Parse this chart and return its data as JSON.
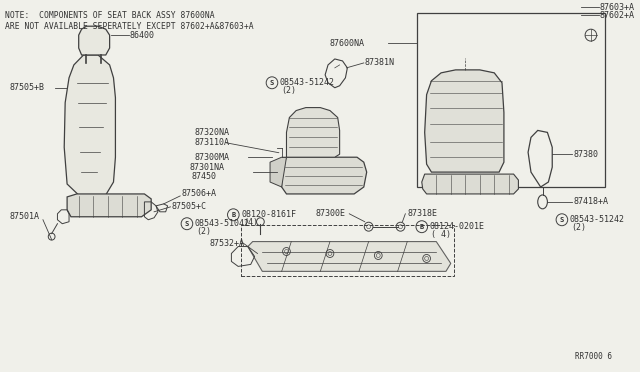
{
  "bg_color": "#f0f0ea",
  "line_color": "#404040",
  "text_color": "#333333",
  "title_note": "NOTE:  COMPONENTS OF SEAT BACK ASSY 87600NA",
  "title_note2": "ARE NOT AVAILABLE SEPERATELY EXCEPT 87602+A&87603+A",
  "ref_code": "RR7000 6"
}
